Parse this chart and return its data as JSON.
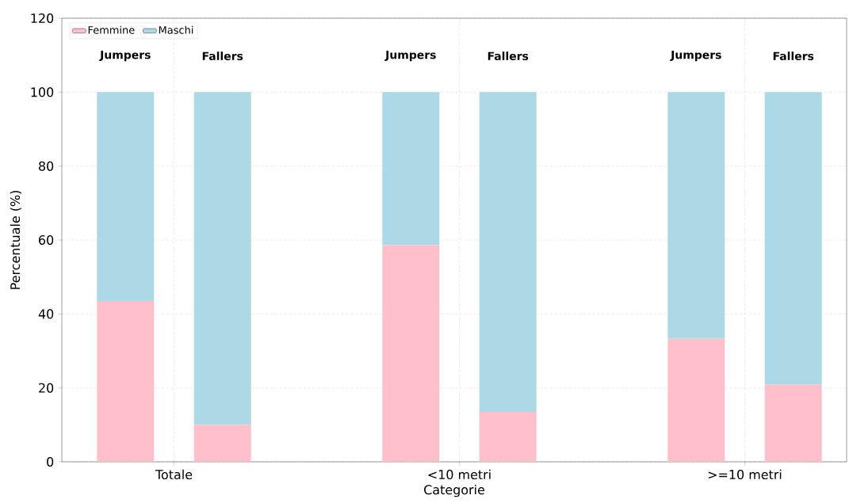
{
  "chart_data": {
    "type": "bar",
    "stacked": true,
    "xlabel": "Categorie",
    "ylabel": "Percentuale (%)",
    "categories": [
      "Jumpers",
      "Fallers",
      "Jumpers",
      "Fallers",
      "Jumpers",
      "Fallers"
    ],
    "ylim": [
      0,
      120
    ],
    "yticks": [
      0,
      20,
      40,
      60,
      80,
      100,
      120
    ],
    "series": [
      {
        "name": "Femmine",
        "color": "#ffc0cb",
        "values": [
          43.5,
          10,
          58.6,
          13.5,
          33.3,
          20.9
        ]
      },
      {
        "name": "Maschi",
        "color": "#add8e6",
        "values": [
          56.5,
          90,
          41.4,
          86.5,
          66.7,
          79.1
        ]
      }
    ],
    "annotations": [
      "Totale",
      "<10 metri",
      ">=10 metri"
    ],
    "grid": true,
    "legend": "top left"
  }
}
